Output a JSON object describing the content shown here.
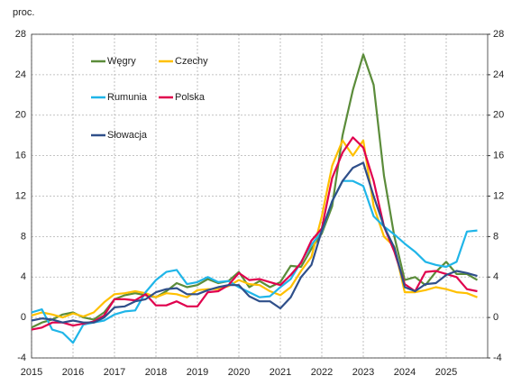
{
  "chart_data": {
    "type": "line",
    "unit_label": "proc.",
    "x": [
      2015,
      2015.25,
      2015.5,
      2015.75,
      2016,
      2016.25,
      2016.5,
      2016.75,
      2017,
      2017.25,
      2017.5,
      2017.75,
      2018,
      2018.25,
      2018.5,
      2018.75,
      2019,
      2019.25,
      2019.5,
      2019.75,
      2020,
      2020.25,
      2020.5,
      2020.75,
      2021,
      2021.25,
      2021.5,
      2021.75,
      2022,
      2022.25,
      2022.5,
      2022.75,
      2023,
      2023.25,
      2023.5,
      2023.75,
      2024,
      2024.25,
      2024.5,
      2024.75,
      2025,
      2025.25,
      2025.5,
      2025.75
    ],
    "series": [
      {
        "name": "Węgry",
        "color": "#5b8c3a",
        "values": [
          -1,
          -0.5,
          -0.2,
          0.3,
          0.5,
          0,
          -0.2,
          0.5,
          1.8,
          2.2,
          2.4,
          2.2,
          2,
          2.6,
          3.4,
          3,
          3.2,
          3.8,
          3.4,
          3.6,
          4.5,
          3,
          3.6,
          3,
          3.5,
          5.1,
          5,
          6.8,
          8.3,
          11,
          18,
          22.5,
          26,
          23,
          14,
          8,
          3.7,
          4,
          3.2,
          4.5,
          5.5,
          4.3,
          4.3,
          3.7
        ]
      },
      {
        "name": "Czechy",
        "color": "#ffc000",
        "values": [
          0.2,
          0.5,
          0.3,
          0,
          0.4,
          0.1,
          0.5,
          1.5,
          2.3,
          2.4,
          2.6,
          2.4,
          2,
          2.4,
          2.3,
          2,
          2.7,
          2.8,
          2.8,
          3.1,
          3.7,
          3.3,
          3.2,
          2.6,
          2.2,
          3,
          4.6,
          6,
          10,
          15,
          17.5,
          16,
          17.5,
          11,
          8,
          7,
          2.5,
          2.5,
          2.7,
          3,
          2.8,
          2.5,
          2.4,
          2
        ]
      },
      {
        "name": "Rumunia",
        "color": "#1fb5e8",
        "values": [
          0.5,
          0.8,
          -1.2,
          -1.5,
          -2.5,
          -0.7,
          -0.5,
          -0.3,
          0.3,
          0.6,
          0.7,
          2.5,
          3.7,
          4.5,
          4.7,
          3.3,
          3.5,
          4,
          3.5,
          3.6,
          3,
          2.5,
          2,
          2.1,
          3,
          3.8,
          5.5,
          7.2,
          8.5,
          11.5,
          13.5,
          13.5,
          13,
          10,
          9,
          8.2,
          7.3,
          6.5,
          5.5,
          5.2,
          5,
          5.5,
          8.5,
          8.6
        ]
      },
      {
        "name": "Polska",
        "color": "#e0004d",
        "values": [
          -1.2,
          -1,
          -0.5,
          -0.5,
          -0.8,
          -0.6,
          -0.4,
          0.2,
          1.8,
          1.8,
          1.7,
          2.3,
          1.2,
          1.2,
          1.6,
          1.1,
          1.1,
          2.5,
          2.6,
          3.2,
          4.4,
          3.7,
          3.8,
          3.5,
          3.2,
          4.2,
          5.4,
          7.6,
          8.8,
          13.8,
          16.3,
          17.8,
          16.8,
          13.5,
          9,
          6.5,
          3.3,
          2.6,
          4.5,
          4.6,
          4.3,
          4,
          2.8,
          2.6
        ]
      },
      {
        "name": "Słowacja",
        "color": "#2f4f8a",
        "values": [
          -0.3,
          -0.1,
          -0.2,
          -0.5,
          -0.3,
          -0.5,
          -0.5,
          0,
          1,
          1.1,
          1.6,
          1.8,
          2.5,
          2.8,
          2.9,
          2.3,
          2.3,
          2.7,
          3,
          3.2,
          3.2,
          2.1,
          1.6,
          1.6,
          0.9,
          2,
          4,
          5.2,
          8.6,
          11.5,
          13.5,
          14.8,
          15.3,
          12,
          9,
          6.9,
          3,
          2.6,
          3.3,
          3.4,
          4.2,
          4.6,
          4.4,
          4.1
        ]
      }
    ],
    "xlim": [
      2015,
      2026
    ],
    "xticks": [
      2015,
      2016,
      2017,
      2018,
      2019,
      2020,
      2021,
      2022,
      2023,
      2024,
      2025
    ],
    "ylim": [
      -4,
      28
    ],
    "yticks": [
      -4,
      0,
      4,
      8,
      12,
      16,
      20,
      24,
      28
    ],
    "y2lim": [
      -4,
      28
    ],
    "y2ticks": [
      -4,
      0,
      4,
      8,
      12,
      16,
      20,
      24,
      28
    ],
    "grid": true,
    "legend": "upper left"
  }
}
